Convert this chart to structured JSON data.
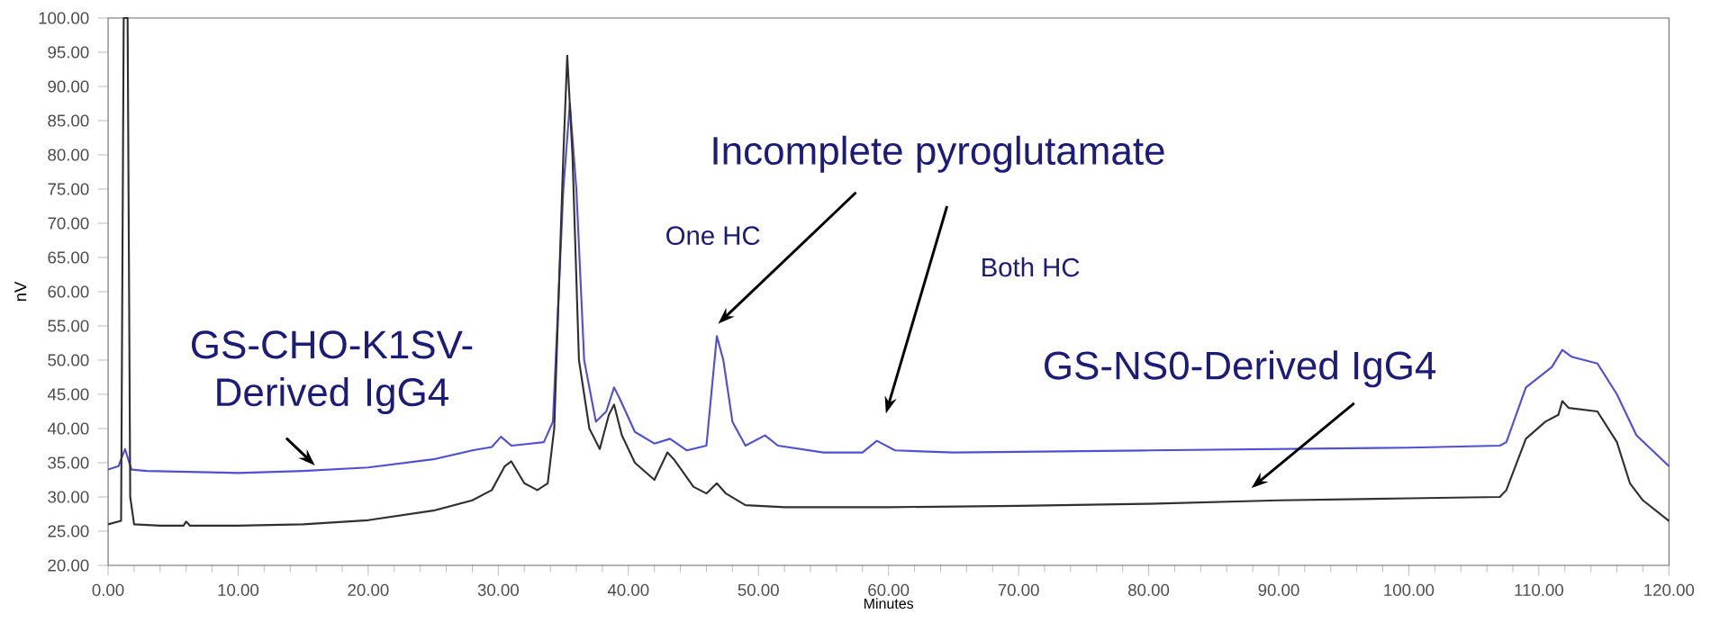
{
  "chart_data": {
    "type": "line",
    "xlabel": "Minutes",
    "ylabel": "nV",
    "xlim": [
      0,
      120
    ],
    "ylim": [
      20,
      100
    ],
    "xticks": [
      {
        "value": 0,
        "label": "0.00"
      },
      {
        "value": 10,
        "label": "10.00"
      },
      {
        "value": 20,
        "label": "20.00"
      },
      {
        "value": 30,
        "label": "30.00"
      },
      {
        "value": 40,
        "label": "40.00"
      },
      {
        "value": 50,
        "label": "50.00"
      },
      {
        "value": 60,
        "label": "60.00"
      },
      {
        "value": 70,
        "label": "70.00"
      },
      {
        "value": 80,
        "label": "80.00"
      },
      {
        "value": 90,
        "label": "90.00"
      },
      {
        "value": 100,
        "label": "100.00"
      },
      {
        "value": 110,
        "label": "110.00"
      },
      {
        "value": 120,
        "label": "120.00"
      }
    ],
    "yticks": [
      {
        "value": 20,
        "label": "20.00"
      },
      {
        "value": 25,
        "label": "25.00"
      },
      {
        "value": 30,
        "label": "30.00"
      },
      {
        "value": 35,
        "label": "35.00"
      },
      {
        "value": 40,
        "label": "40.00"
      },
      {
        "value": 45,
        "label": "45.00"
      },
      {
        "value": 50,
        "label": "50.00"
      },
      {
        "value": 55,
        "label": "55.00"
      },
      {
        "value": 60,
        "label": "60.00"
      },
      {
        "value": 65,
        "label": "65.00"
      },
      {
        "value": 70,
        "label": "70.00"
      },
      {
        "value": 75,
        "label": "75.00"
      },
      {
        "value": 80,
        "label": "80.00"
      },
      {
        "value": 85,
        "label": "85.00"
      },
      {
        "value": 90,
        "label": "90.00"
      },
      {
        "value": 95,
        "label": "95.00"
      },
      {
        "value": 100,
        "label": "100.00"
      }
    ],
    "grid": false,
    "marker": "none",
    "line_style": "solid",
    "series": [
      {
        "color": "#5050d0",
        "x": [
          0,
          0.8,
          1.3,
          1.8,
          3,
          10,
          15,
          20,
          25,
          28,
          29.5,
          30.2,
          31,
          32,
          33.5,
          34.2,
          35,
          35.5,
          36,
          36.6,
          37.5,
          38.3,
          38.9,
          39.3,
          40.5,
          42,
          43.2,
          44.5,
          46,
          46.8,
          47.3,
          48,
          49,
          50.5,
          51.5,
          55,
          58,
          59.1,
          60.5,
          65,
          80,
          100,
          107,
          107.5,
          109,
          111,
          111.8,
          112.5,
          114.5,
          116,
          117.5,
          120
        ],
        "values": [
          34,
          34.5,
          37,
          34,
          33.8,
          33.5,
          33.8,
          34.3,
          35.5,
          36.8,
          37.3,
          38.8,
          37.5,
          37.7,
          38,
          41,
          75,
          87.5,
          75,
          50,
          41,
          42.5,
          46,
          44.5,
          39.5,
          37.8,
          38.5,
          36.8,
          37.5,
          53.5,
          50,
          41,
          37.5,
          39,
          37.5,
          36.5,
          36.5,
          38.2,
          36.8,
          36.5,
          36.8,
          37.2,
          37.5,
          38,
          46,
          49,
          51.5,
          50.5,
          49.5,
          45,
          39,
          34.5
        ]
      },
      {
        "color": "#303030",
        "x": [
          0,
          1,
          1.2,
          1.5,
          1.7,
          2,
          4,
          5.8,
          6,
          6.3,
          10,
          15,
          20,
          25,
          28,
          29.5,
          30.5,
          31,
          32,
          33,
          33.8,
          34.3,
          35,
          35.3,
          35.7,
          36.2,
          37,
          37.8,
          38.5,
          38.9,
          39.5,
          40.5,
          42,
          43,
          43.5,
          45,
          46,
          46.8,
          47.5,
          49,
          52,
          60,
          70,
          80,
          90,
          100,
          107,
          107.5,
          109,
          110.5,
          111.5,
          111.8,
          112.3,
          114.5,
          116,
          117,
          118,
          120
        ],
        "values": [
          26,
          26.5,
          100,
          100,
          30,
          26,
          25.8,
          25.8,
          26.4,
          25.8,
          25.8,
          26,
          26.6,
          28,
          29.5,
          31,
          34.5,
          35.2,
          32,
          31,
          32,
          40,
          80,
          94.5,
          80,
          50,
          40,
          37,
          42,
          43.5,
          39,
          35,
          32.5,
          36.5,
          35.5,
          31.5,
          30.5,
          32,
          30.5,
          28.8,
          28.5,
          28.5,
          28.7,
          29,
          29.5,
          29.8,
          30,
          31,
          38.5,
          41,
          42,
          44,
          43,
          42.5,
          38,
          32,
          29.5,
          26.5
        ]
      }
    ],
    "annotations": [
      {
        "text": "GS-CHO-K1SV-Derived IgG4",
        "x": 15.9,
        "y": 34.6
      },
      "Incomplete pyroglutamate",
      "One HC",
      "Both HC",
      "GS-NS0-Derived IgG4"
    ]
  }
}
